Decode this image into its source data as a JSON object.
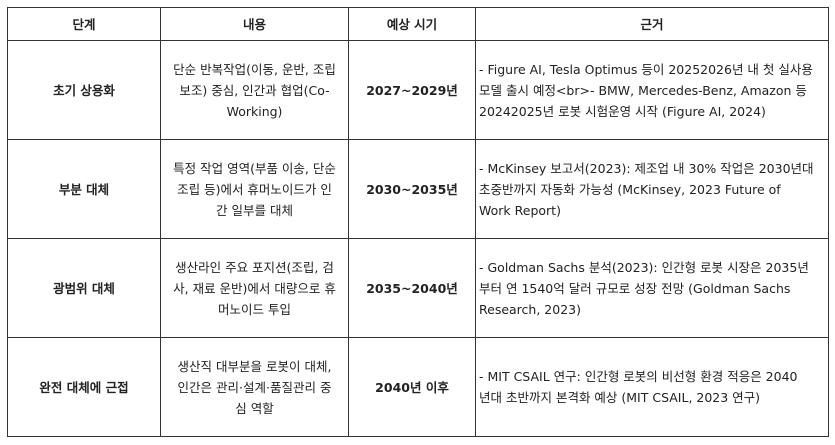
{
  "table": {
    "headers": [
      "단계",
      "내용",
      "예상 시기",
      "근거"
    ],
    "rows": [
      {
        "stage": "초기 상용화",
        "content": [
          "단순 반복작업(이동, 운반, 조립",
          "보조) 중심, 인간과 협업(Co-",
          "Working)"
        ],
        "period": "2027~2029년",
        "basis": [
          "- Figure AI, Tesla Optimus 등이 20252026년 내 첫 실사용",
          "모델 출시 예정<br>- BMW, Mercedes-Benz, Amazon 등",
          "20242025년 로봇 시험운영 시작 (Figure AI, 2024)"
        ]
      },
      {
        "stage": "부분 대체",
        "content": [
          "특정 작업 영역(부품 이송, 단순",
          "조립 등)에서 휴머노이드가 인",
          "간 일부를 대체"
        ],
        "period": "2030~2035년",
        "basis": [
          "- McKinsey 보고서(2023): 제조업 내 30% 작업은 2030년대",
          "초중반까지 자동화 가능성 (McKinsey, 2023 Future of",
          "Work Report)"
        ]
      },
      {
        "stage": "광범위 대체",
        "content": [
          "생산라인 주요 포지션(조립, 검",
          "사, 재료 운반)에서 대량으로 휴",
          "머노이드 투입"
        ],
        "period": "2035~2040년",
        "basis": [
          "- Goldman Sachs 분석(2023): 인간형 로봇 시장은 2035년",
          "부터 연 1540억 달러 규모로 성장 전망 (Goldman Sachs",
          "Research, 2023)"
        ]
      },
      {
        "stage": "완전 대체에 근접",
        "content": [
          "생산직 대부분을 로봇이 대체,",
          "인간은 관리·설계·품질관리 중",
          "심 역할"
        ],
        "period": "2040년 이후",
        "basis": [
          "- MIT CSAIL 연구: 인간형 로봇의 비선형 환경 적응은 2040",
          "년대 초반까지 본격화 예상 (MIT CSAIL, 2023 연구)"
        ]
      }
    ]
  }
}
